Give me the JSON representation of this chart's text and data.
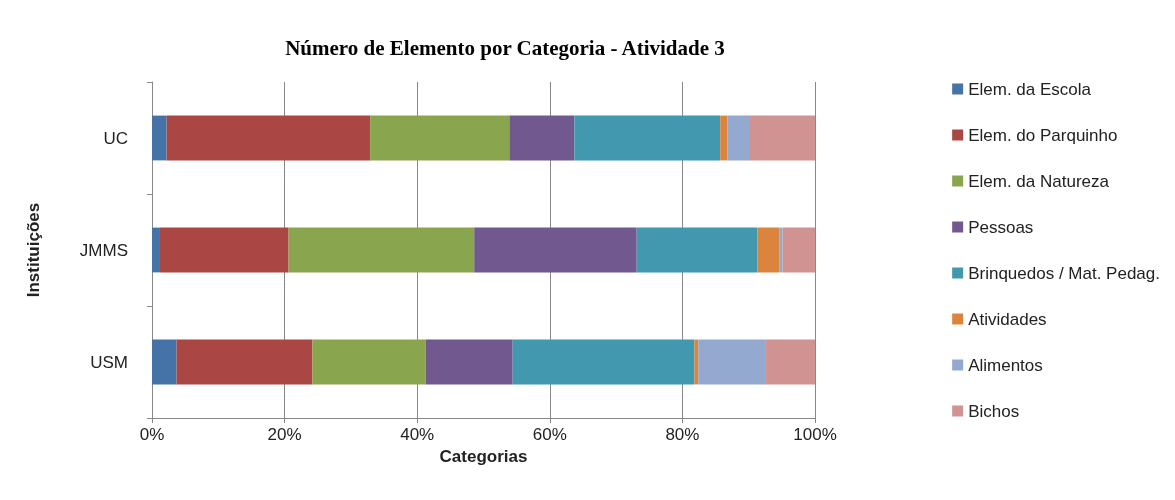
{
  "chart_data": {
    "type": "bar",
    "orientation": "horizontal",
    "stacked": true,
    "title": "Número de Elemento por Categoria - Atividade 3",
    "xlabel": "Categorias",
    "ylabel": "Instituições",
    "categories": [
      "UC",
      "JMMS",
      "USM"
    ],
    "series": [
      {
        "name": "Elem. da Escola",
        "color": "#4572a7",
        "values": [
          2.2,
          1.2,
          3.7
        ]
      },
      {
        "name": "Elem. do Parquinho",
        "color": "#aa4643",
        "values": [
          30.7,
          19.4,
          20.5
        ]
      },
      {
        "name": "Elem. da Natureza",
        "color": "#89a54e",
        "values": [
          21.0,
          28.0,
          17.1
        ]
      },
      {
        "name": "Pessoas",
        "color": "#71588f",
        "values": [
          9.8,
          24.5,
          13.1
        ]
      },
      {
        "name": "Brinquedos / Mat. Pedag.",
        "color": "#4198af",
        "values": [
          22.0,
          18.2,
          27.4
        ]
      },
      {
        "name": "Atividades",
        "color": "#db843d",
        "values": [
          1.1,
          3.3,
          0.6
        ]
      },
      {
        "name": "Alimentos",
        "color": "#93a9cf",
        "values": [
          3.4,
          0.5,
          10.2
        ]
      },
      {
        "name": "Bichos",
        "color": "#d19392",
        "values": [
          9.8,
          4.9,
          7.4
        ]
      }
    ],
    "xlim": [
      0,
      100
    ],
    "xticks": [
      {
        "value": 0,
        "label": "0%"
      },
      {
        "value": 20,
        "label": "20%"
      },
      {
        "value": 40,
        "label": "40%"
      },
      {
        "value": 60,
        "label": "60%"
      },
      {
        "value": 80,
        "label": "80%"
      },
      {
        "value": 100,
        "label": "100%"
      }
    ],
    "grid": "x",
    "legend": "right"
  }
}
